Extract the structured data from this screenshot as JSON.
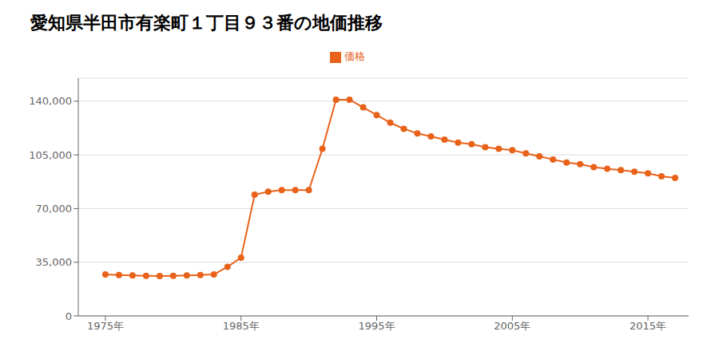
{
  "chart_data": {
    "type": "line",
    "title": "愛知県半田市有楽町１丁目９３番の地価推移",
    "x": [
      1975,
      1976,
      1977,
      1978,
      1979,
      1980,
      1981,
      1982,
      1983,
      1984,
      1985,
      1986,
      1987,
      1988,
      1989,
      1990,
      1991,
      1992,
      1993,
      1994,
      1995,
      1996,
      1997,
      1998,
      1999,
      2000,
      2001,
      2002,
      2003,
      2004,
      2005,
      2006,
      2007,
      2008,
      2009,
      2010,
      2011,
      2012,
      2013,
      2014,
      2015,
      2016,
      2017
    ],
    "series": [
      {
        "name": "価格",
        "color": "#E8621A",
        "marker": "circle",
        "values": [
          27000,
          26700,
          26400,
          26200,
          26000,
          26200,
          26400,
          26700,
          27000,
          32000,
          38000,
          79000,
          81000,
          82000,
          82000,
          82000,
          109000,
          141000,
          141000,
          136000,
          131000,
          126000,
          122000,
          119000,
          117000,
          115000,
          113000,
          112000,
          110000,
          109000,
          108000,
          106000,
          104000,
          102000,
          100000,
          99000,
          97000,
          96000,
          95000,
          94000,
          93000,
          91000,
          90000
        ]
      }
    ],
    "xlim": [
      1973,
      2018
    ],
    "xticks": [
      {
        "value": 1975,
        "label": "1975年"
      },
      {
        "value": 1985,
        "label": "1985年"
      },
      {
        "value": 1995,
        "label": "1995年"
      },
      {
        "value": 2005,
        "label": "2005年"
      },
      {
        "value": 2015,
        "label": "2015年"
      }
    ],
    "ylim": [
      0,
      155000
    ],
    "yticks": [
      0,
      {
        "value": 35000,
        "label": "35,000"
      },
      {
        "value": 70000,
        "label": "70,000"
      },
      {
        "value": 105000,
        "label": "105,000"
      },
      {
        "value": 140000,
        "label": "140,000"
      }
    ],
    "grid": "y",
    "legend": "top"
  }
}
